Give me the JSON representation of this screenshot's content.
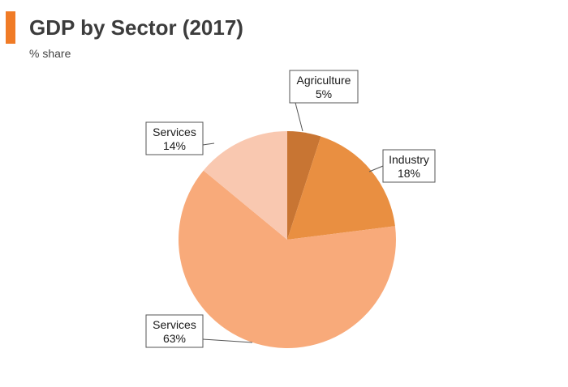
{
  "header": {
    "title": "GDP by Sector (2017)",
    "subtitle": "% share",
    "accent_color": "#f07b26"
  },
  "chart_data": {
    "type": "pie",
    "title": "GDP by Sector (2017)",
    "subtitle": "% share",
    "start": "12 o'clock, clockwise",
    "slices": [
      {
        "label": "Agriculture",
        "value": 5,
        "value_label": "5%",
        "color": "#c87533"
      },
      {
        "label": "Industry",
        "value": 18,
        "value_label": "18%",
        "color": "#e98f41"
      },
      {
        "label": "Services",
        "value": 63,
        "value_label": "63%",
        "color": "#f8aa7a"
      },
      {
        "label": "Services",
        "value": 14,
        "value_label": "14%",
        "color": "#f9c8b0"
      }
    ]
  }
}
